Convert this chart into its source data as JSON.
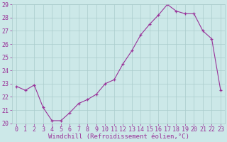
{
  "x_data": [
    0,
    1,
    2,
    3,
    4,
    5,
    6,
    7,
    8,
    9,
    10,
    11,
    12,
    13,
    14,
    15,
    16,
    17,
    18,
    19,
    20,
    21,
    22,
    23
  ],
  "y_data": [
    22.8,
    22.5,
    22.9,
    21.2,
    20.2,
    20.2,
    20.8,
    21.5,
    21.8,
    22.2,
    23.0,
    23.3,
    24.5,
    25.5,
    26.7,
    27.5,
    28.2,
    29.0,
    28.5,
    28.3,
    28.3,
    27.0,
    26.4,
    22.5
  ],
  "xlabel": "Windchill (Refroidissement éolien,°C)",
  "ylim": [
    20,
    29
  ],
  "xlim": [
    -0.5,
    23.5
  ],
  "yticks": [
    20,
    21,
    22,
    23,
    24,
    25,
    26,
    27,
    28,
    29
  ],
  "xticks": [
    0,
    1,
    2,
    3,
    4,
    5,
    6,
    7,
    8,
    9,
    10,
    11,
    12,
    13,
    14,
    15,
    16,
    17,
    18,
    19,
    20,
    21,
    22,
    23
  ],
  "line_color": "#993399",
  "marker": "+",
  "bg_color": "#cce8e8",
  "grid_color": "#aacccc",
  "tick_label_color": "#993399",
  "xlabel_color": "#993399",
  "xlabel_fontsize": 6.5,
  "tick_fontsize": 6.0,
  "linewidth": 0.8,
  "markersize": 3.5,
  "markeredgewidth": 0.9
}
